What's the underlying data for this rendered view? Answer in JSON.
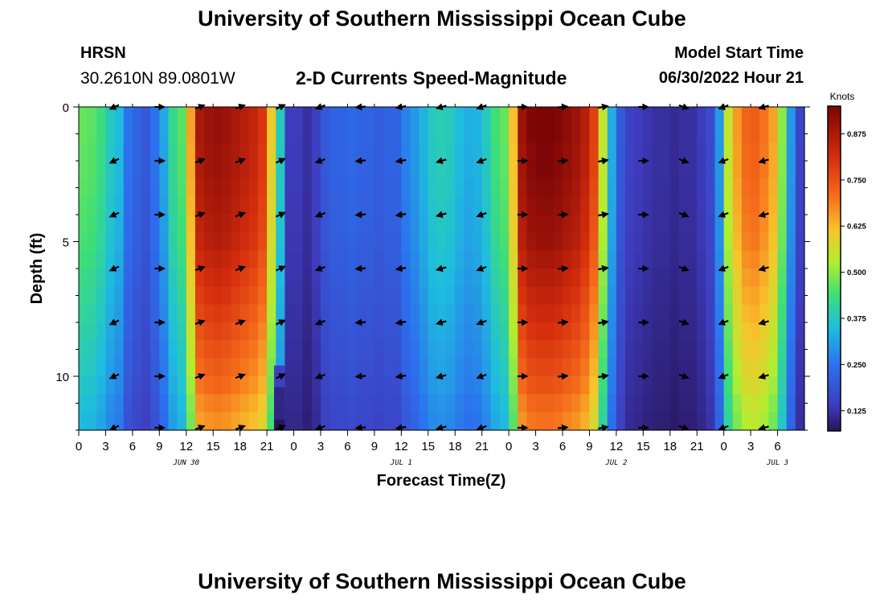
{
  "header": {
    "title": "University of Southern Mississippi Ocean Cube",
    "station": "HRSN",
    "coords": "30.2610N  89.0801W",
    "subtitle": "2-D Currents Speed-Magnitude",
    "model_start_label": "Model Start Time",
    "model_start_value": "06/30/2022 Hour 21"
  },
  "footer": {
    "title": "University of Southern Mississippi Ocean Cube"
  },
  "chart_data": {
    "type": "heatmap",
    "title": "2-D Currents Speed-Magnitude",
    "xlabel": "Forecast Time(Z)",
    "ylabel": "Depth (ft)",
    "x_hours": [
      0,
      81
    ],
    "y_depth_ft": [
      0,
      12
    ],
    "x_tick_labels": [
      "0",
      "3",
      "6",
      "9",
      "12",
      "15",
      "18",
      "21",
      "0",
      "3",
      "6",
      "9",
      "12",
      "15",
      "18",
      "21",
      "0",
      "3",
      "6",
      "9",
      "12",
      "15",
      "18",
      "21",
      "0",
      "3",
      "6"
    ],
    "y_tick_labels": [
      "0",
      "5",
      "10"
    ],
    "y_tick_values": [
      0,
      5,
      10
    ],
    "date_labels": [
      {
        "text": "JUN 30",
        "hour": 12
      },
      {
        "text": "JUL 1",
        "hour": 36
      },
      {
        "text": "JUL 2",
        "hour": 60
      },
      {
        "text": "JUL 3",
        "hour": 78
      }
    ],
    "colorbar": {
      "units": "Knots",
      "min": 0.07,
      "max": 0.95,
      "tick_labels": [
        "0.875",
        "0.750",
        "0.625",
        "0.500",
        "0.375",
        "0.250",
        "0.125"
      ],
      "tick_values": [
        0.875,
        0.75,
        0.625,
        0.5,
        0.375,
        0.25,
        0.125
      ]
    },
    "speed_profile_knots": [
      0.47,
      0.46,
      0.43,
      0.38,
      0.35,
      0.25,
      0.22,
      0.2,
      0.25,
      0.32,
      0.42,
      0.46,
      0.65,
      0.88,
      0.9,
      0.91,
      0.9,
      0.88,
      0.86,
      0.84,
      0.8,
      0.6,
      0.38,
      0.14,
      0.14,
      0.12,
      0.15,
      0.2,
      0.22,
      0.22,
      0.23,
      0.22,
      0.22,
      0.21,
      0.22,
      0.22,
      0.27,
      0.3,
      0.34,
      0.38,
      0.39,
      0.38,
      0.35,
      0.33,
      0.34,
      0.38,
      0.44,
      0.47,
      0.62,
      0.9,
      0.94,
      0.95,
      0.95,
      0.94,
      0.92,
      0.9,
      0.86,
      0.78,
      0.55,
      0.33,
      0.2,
      0.15,
      0.14,
      0.13,
      0.12,
      0.12,
      0.11,
      0.12,
      0.12,
      0.14,
      0.17,
      0.3,
      0.55,
      0.66,
      0.72,
      0.73,
      0.7,
      0.65,
      0.5,
      0.3,
      0.16
    ],
    "depth_factors": [
      1.0,
      1.0,
      0.99,
      0.99,
      0.98,
      0.97,
      0.96,
      0.95,
      0.93,
      0.91,
      0.89,
      0.87,
      0.85,
      0.83,
      0.81,
      0.79,
      0.76,
      0.74
    ],
    "arrow_times": [
      4,
      9,
      13.5,
      18,
      22.5,
      27,
      31.5,
      36,
      40.5,
      45,
      49.5,
      54,
      58.5,
      63,
      67.5,
      72,
      76.5
    ],
    "arrow_depths": [
      0,
      2,
      4,
      6,
      8,
      10,
      12
    ],
    "arrow_directions_deg": [
      205,
      0,
      20,
      20,
      25,
      200,
      185,
      190,
      195,
      200,
      0,
      5,
      10,
      0,
      -20,
      200,
      195
    ],
    "dark_cells": [
      {
        "hours": [
          21.8,
          23.0
        ],
        "depths": [
          11.6,
          12.0
        ],
        "speed": 0.05
      },
      {
        "hours": [
          21.8,
          23.0
        ],
        "depths": [
          10.4,
          11.6
        ],
        "speed": 0.1
      },
      {
        "hours": [
          21.8,
          23.0
        ],
        "depths": [
          9.6,
          10.4
        ],
        "speed": 0.15
      }
    ]
  }
}
